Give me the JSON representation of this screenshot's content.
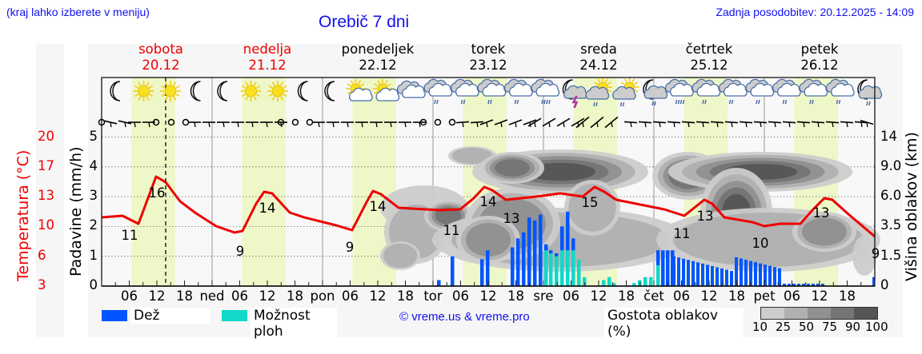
{
  "header": {
    "menu_note": "(kraj lahko izberete v meniju)",
    "title": "Orebič 7 dni",
    "updated": "Zadnja posodobitev: 20.12.2025 - 14:09"
  },
  "days": [
    {
      "name": "sobota",
      "date": "20.12",
      "weekend": true
    },
    {
      "name": "nedelja",
      "date": "21.12",
      "weekend": true
    },
    {
      "name": "ponedeljek",
      "date": "22.12",
      "weekend": false
    },
    {
      "name": "torek",
      "date": "23.12",
      "weekend": false
    },
    {
      "name": "sreda",
      "date": "24.12",
      "weekend": false
    },
    {
      "name": "četrtek",
      "date": "25.12",
      "weekend": false
    },
    {
      "name": "petek",
      "date": "26.12",
      "weekend": false
    }
  ],
  "axes": {
    "left_title": "Padavine (mm/h)",
    "left_ticks": [
      "0",
      "1",
      "2",
      "3",
      "4",
      "5"
    ],
    "temp_title": "Temperatura (°C)",
    "temp_ticks": [
      "3",
      "6",
      "10",
      "13",
      "17",
      "20"
    ],
    "right_title": "Višina oblakov (km)",
    "right_ticks": [
      "0",
      "1.5",
      "3.5",
      "6.0",
      "9.0",
      "14"
    ],
    "x_labels": [
      "06",
      "12",
      "18",
      "ned",
      "06",
      "12",
      "18",
      "pon",
      "06",
      "12",
      "18",
      "tor",
      "06",
      "12",
      "18",
      "sre",
      "06",
      "12",
      "18",
      "čet",
      "06",
      "12",
      "18",
      "pet",
      "06",
      "12",
      "18"
    ]
  },
  "legend": {
    "rain": "Dež",
    "showers": "Možnost ploh",
    "copyright": "© vreme.us & vreme.pro",
    "cloud_title": "Gostota oblakov (%)",
    "cloud_scale": [
      "10",
      "25",
      "50",
      "75",
      "90",
      "100"
    ]
  },
  "colors": {
    "temperature": "#ee0000",
    "rain": "#0055ff",
    "showers": "#11d8c8",
    "daylight": "#eef7c8",
    "header_blue": "#1010ee",
    "cloud_scale": [
      "#cccccc",
      "#b0b0b0",
      "#909090",
      "#757575",
      "#555555"
    ]
  },
  "weather_icons": [
    "moon",
    "sun",
    "sun",
    "moon",
    "moon",
    "sun",
    "sun",
    "moon",
    "moon",
    "sun-cloud",
    "sun-cloud",
    "cloud",
    "cloud-rain",
    "cloud-rain",
    "cloud-rain",
    "cloud-rain",
    "cloud-heavy-rain",
    "moon-thunder",
    "sun-cloud-rain",
    "sun-cloud-rain",
    "moon-cloud-rain",
    "cloud-heavy-rain",
    "cloud-rain",
    "cloud-rain",
    "cloud-rain",
    "cloud-rain",
    "cloud-rain",
    "cloud-rain",
    "moon-cloud-rain"
  ],
  "chart_data": {
    "type": "line",
    "title": "Orebič 7 dni",
    "xlabel": "",
    "ylabel": "Padavine (mm/h)",
    "ylim": [
      0,
      5
    ],
    "y2label": "Višina oblakov (km)",
    "temp_label": "Temperatura (°C)",
    "grid": true,
    "current_time_marker": "20.12 14:00",
    "temperature_extremes": [
      {
        "time": "20.12 06",
        "value": 11,
        "type": "min"
      },
      {
        "time": "20.12 13",
        "value": 16,
        "type": "max"
      },
      {
        "time": "21.12 06",
        "value": 9,
        "type": "min"
      },
      {
        "time": "21.12 13",
        "value": 14,
        "type": "max"
      },
      {
        "time": "22.12 06",
        "value": 9,
        "type": "min"
      },
      {
        "time": "22.12 13",
        "value": 14,
        "type": "max"
      },
      {
        "time": "23.12 03",
        "value": 11,
        "type": "min"
      },
      {
        "time": "23.12 12",
        "value": 14,
        "type": "max"
      },
      {
        "time": "23.12 14",
        "value": 13,
        "type": "min"
      },
      {
        "time": "24.12 13",
        "value": 15,
        "type": "max"
      },
      {
        "time": "25.12 08",
        "value": 11,
        "type": "min"
      },
      {
        "time": "25.12 11",
        "value": 13,
        "type": "max"
      },
      {
        "time": "26.12 03",
        "value": 10,
        "type": "min"
      },
      {
        "time": "26.12 13",
        "value": 13,
        "type": "max"
      },
      {
        "time": "26.12 24",
        "value": 9,
        "type": "min"
      }
    ],
    "series": [
      {
        "name": "Dež",
        "type": "bar",
        "unit": "mm/h",
        "note": "peaks ~2.5 mm/h on 23.12 evening, ~1.2 mm/h 25.12 morning"
      },
      {
        "name": "Možnost ploh",
        "type": "bar",
        "unit": "mm/h",
        "note": "showers ~1.6 mm/h 23.12 late evening, light 24.12"
      },
      {
        "name": "Temperatura",
        "type": "line",
        "unit": "°C"
      }
    ]
  }
}
